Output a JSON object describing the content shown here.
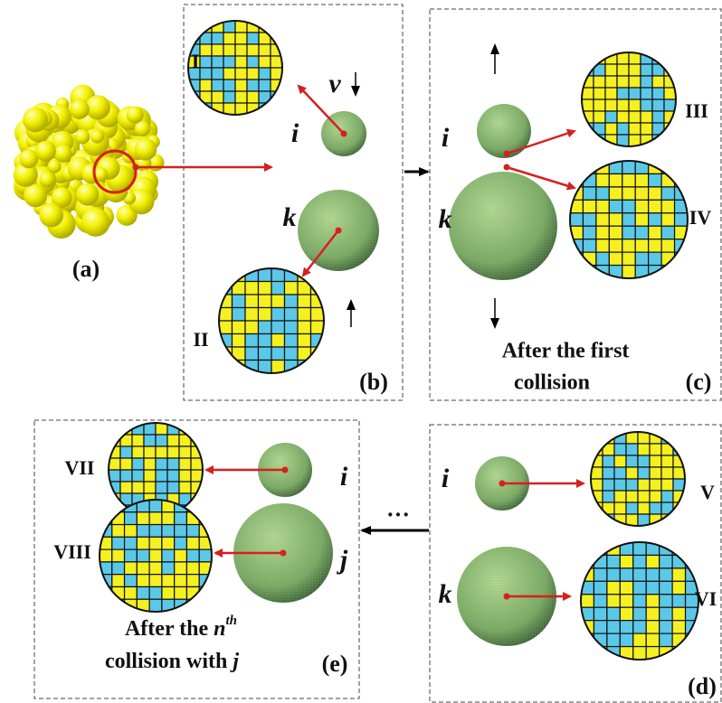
{
  "labels": {
    "a": "(a)",
    "b": "(b)",
    "c": "(c)",
    "d": "(d)",
    "e": "(e)"
  },
  "regions": [
    "I",
    "II",
    "III",
    "IV",
    "V",
    "VI",
    "VII",
    "VIII"
  ],
  "particles": {
    "i": "i",
    "k": "k",
    "j": "j"
  },
  "velocity": "v",
  "ellipsis": "···",
  "caption_c": [
    "After the first",
    "collision"
  ],
  "caption_e": {
    "line1": "After the ",
    "n": "n",
    "th": "th",
    "line2": "collision with ",
    "j": "j"
  }
}
